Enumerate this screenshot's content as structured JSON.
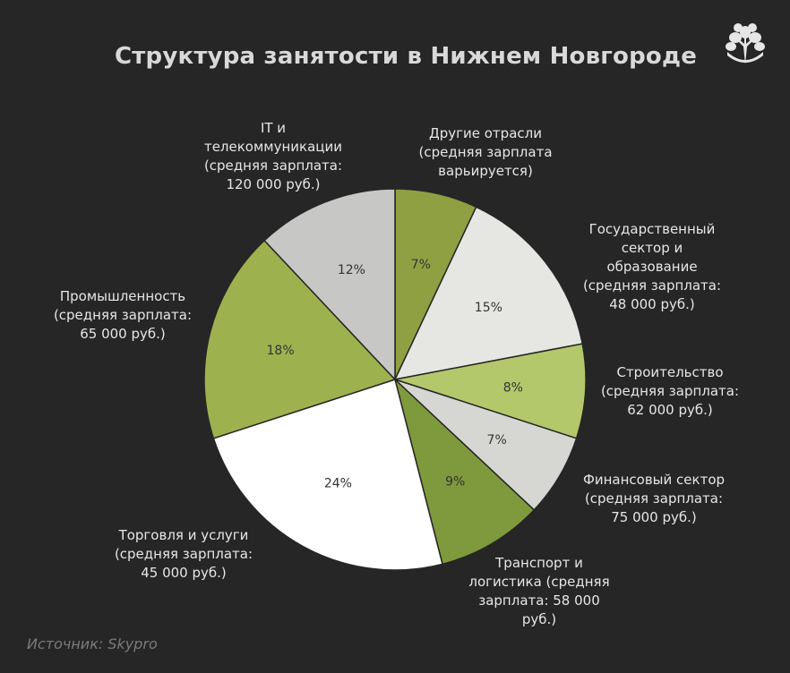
{
  "chart_data": {
    "type": "pie",
    "title": "Структура занятости в Нижнем Новгороде",
    "slices": [
      {
        "label": "Другие отрасли\n(средняя зарплата\nварьируется)",
        "value": 7,
        "value_label": "7%",
        "color": "#8fa043"
      },
      {
        "label": "Государственный\nсектор и\nобразование\n(средняя зарплата:\n48 000 руб.)",
        "value": 15,
        "value_label": "15%",
        "color": "#e6e6e3"
      },
      {
        "label": "Строительство\n(средняя зарплата:\n62 000 руб.)",
        "value": 8,
        "value_label": "8%",
        "color": "#b3c86a"
      },
      {
        "label": "Финансовый сектор\n(средняя зарплата:\n75 000 руб.)",
        "value": 7,
        "value_label": "7%",
        "color": "#d6d6d3"
      },
      {
        "label": "Транспорт и\nлогистика (средняя\nзарплата: 58 000\nруб.)",
        "value": 9,
        "value_label": "9%",
        "color": "#7e9a3c"
      },
      {
        "label": "Торговля и услуги\n(средняя зарплата:\n45 000 руб.)",
        "value": 24,
        "value_label": "24%",
        "color": "#ffffff"
      },
      {
        "label": "Промышленность\n(средняя зарплата:\n65 000 руб.)",
        "value": 18,
        "value_label": "18%",
        "color": "#9db24e"
      },
      {
        "label": "IT и\nтелекоммуникации\n(средняя зарплата:\n120 000 руб.)",
        "value": 12,
        "value_label": "12%",
        "color": "#c7c7c5"
      }
    ],
    "start_angle_deg": 0,
    "direction": "clockwise"
  },
  "source": "Источник: Skypro",
  "logo_icon": "tree-logo-icon"
}
